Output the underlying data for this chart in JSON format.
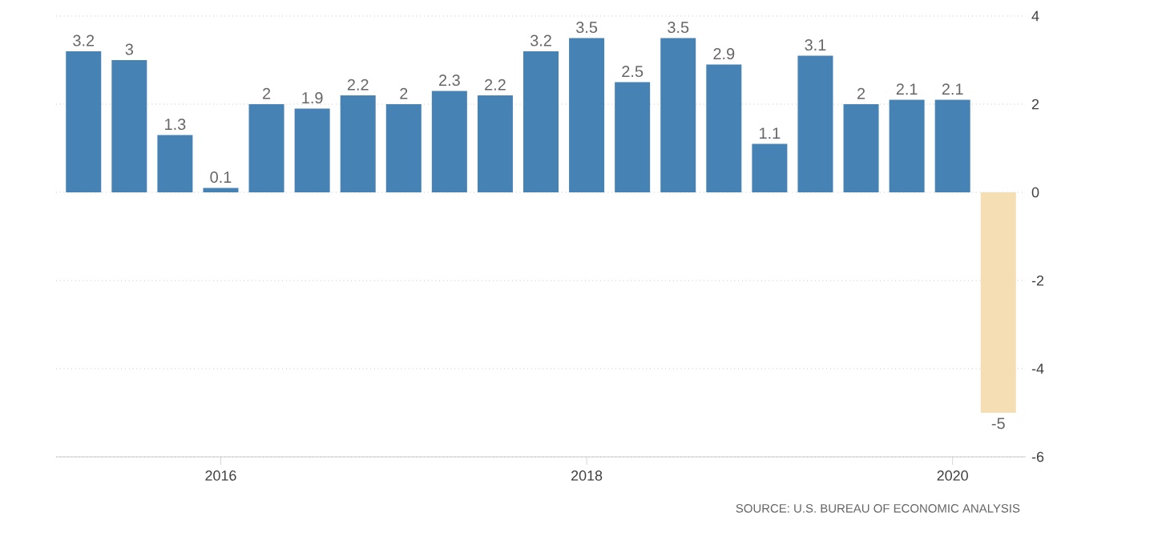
{
  "chart_data": {
    "type": "bar",
    "categories": [
      null,
      null,
      null,
      "2016",
      null,
      null,
      null,
      null,
      null,
      null,
      null,
      "2018",
      null,
      null,
      null,
      null,
      null,
      null,
      null,
      "2020",
      null
    ],
    "values": [
      3.2,
      3,
      1.3,
      0.1,
      2,
      1.9,
      2.2,
      2,
      2.3,
      2.2,
      3.2,
      3.5,
      2.5,
      3.5,
      2.9,
      1.1,
      3.1,
      2,
      2.1,
      2.1,
      -5
    ],
    "colors": [
      "#4682b4",
      "#4682b4",
      "#4682b4",
      "#4682b4",
      "#4682b4",
      "#4682b4",
      "#4682b4",
      "#4682b4",
      "#4682b4",
      "#4682b4",
      "#4682b4",
      "#4682b4",
      "#4682b4",
      "#4682b4",
      "#4682b4",
      "#4682b4",
      "#4682b4",
      "#4682b4",
      "#4682b4",
      "#4682b4",
      "#f5deb3"
    ],
    "ylim": [
      -6,
      4
    ],
    "yticks": [
      -6,
      -4,
      -2,
      0,
      2,
      4
    ],
    "grid": "y",
    "data_labels": true,
    "annotations": [
      "SOURCE: U.S. BUREAU OF ECONOMIC ANALYSIS"
    ]
  }
}
